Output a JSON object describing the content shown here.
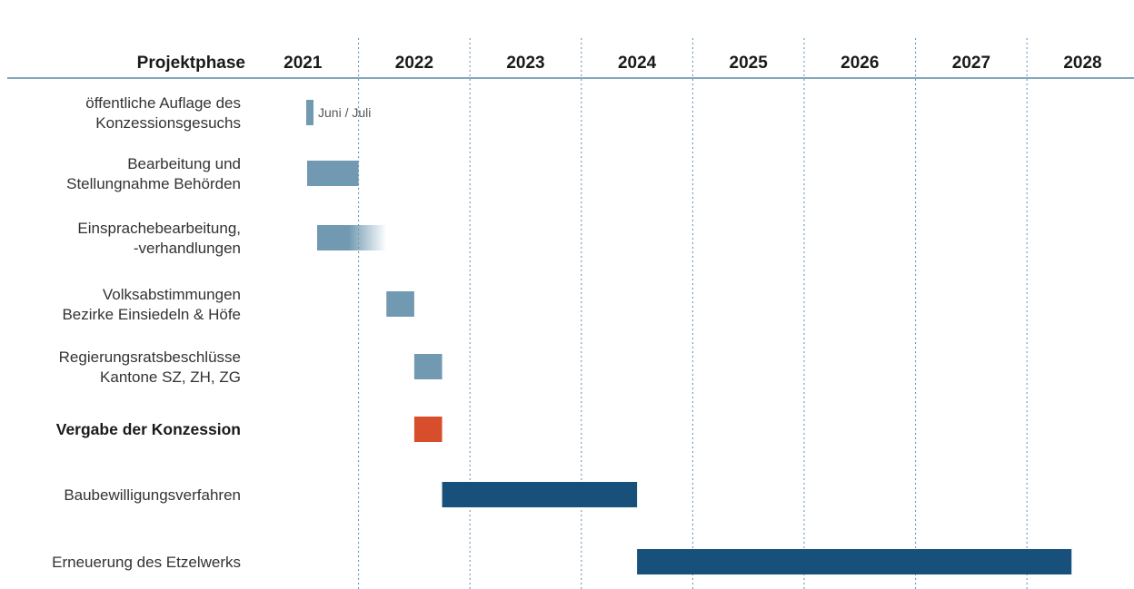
{
  "chart_data": {
    "type": "gantt",
    "header_label": "Projektphase",
    "years": [
      "2021",
      "2022",
      "2023",
      "2024",
      "2025",
      "2026",
      "2027",
      "2028"
    ],
    "grid": "dotted vertical lines at year boundaries",
    "colors": {
      "light": "#7199b1",
      "dark": "#17507a",
      "accent": "#d84e2c",
      "header_rule": "#5a8aa6",
      "grid": "#5f8db0"
    },
    "tasks": [
      {
        "label_lines": [
          "öffentliche Auflage des",
          "Konzessionsgesuchs"
        ],
        "start": 2021.0,
        "end": 2021.07,
        "color": "light",
        "bold": false,
        "annotation": "Juni / Juli"
      },
      {
        "label_lines": [
          "Bearbeitung und",
          "Stellungnahme Behörden"
        ],
        "start": 2021.0,
        "end": 2021.5,
        "color": "light",
        "bold": false
      },
      {
        "label_lines": [
          "Einsprachebearbeitung,",
          "-verhandlungen"
        ],
        "start": 2021.1,
        "end": 2022.25,
        "color": "light",
        "bold": false,
        "fade": true
      },
      {
        "label_lines": [
          "Volksabstimmungen",
          "Bezirke Einsiedeln & Höfe"
        ],
        "start": 2022.25,
        "end": 2022.5,
        "color": "light",
        "bold": false
      },
      {
        "label_lines": [
          "Regierungsratsbeschlüsse",
          "Kantone SZ, ZH, ZG"
        ],
        "start": 2022.5,
        "end": 2022.75,
        "color": "light",
        "bold": false
      },
      {
        "label_lines": [
          "Vergabe der Konzession"
        ],
        "start": 2022.5,
        "end": 2022.75,
        "color": "accent",
        "bold": true
      },
      {
        "label_lines": [
          "Baubewilligungsverfahren"
        ],
        "start": 2022.75,
        "end": 2024.5,
        "color": "dark",
        "bold": false
      },
      {
        "label_lines": [
          "Erneuerung des Etzelwerks"
        ],
        "start": 2024.5,
        "end": 2028.4,
        "color": "dark",
        "bold": false
      }
    ]
  }
}
